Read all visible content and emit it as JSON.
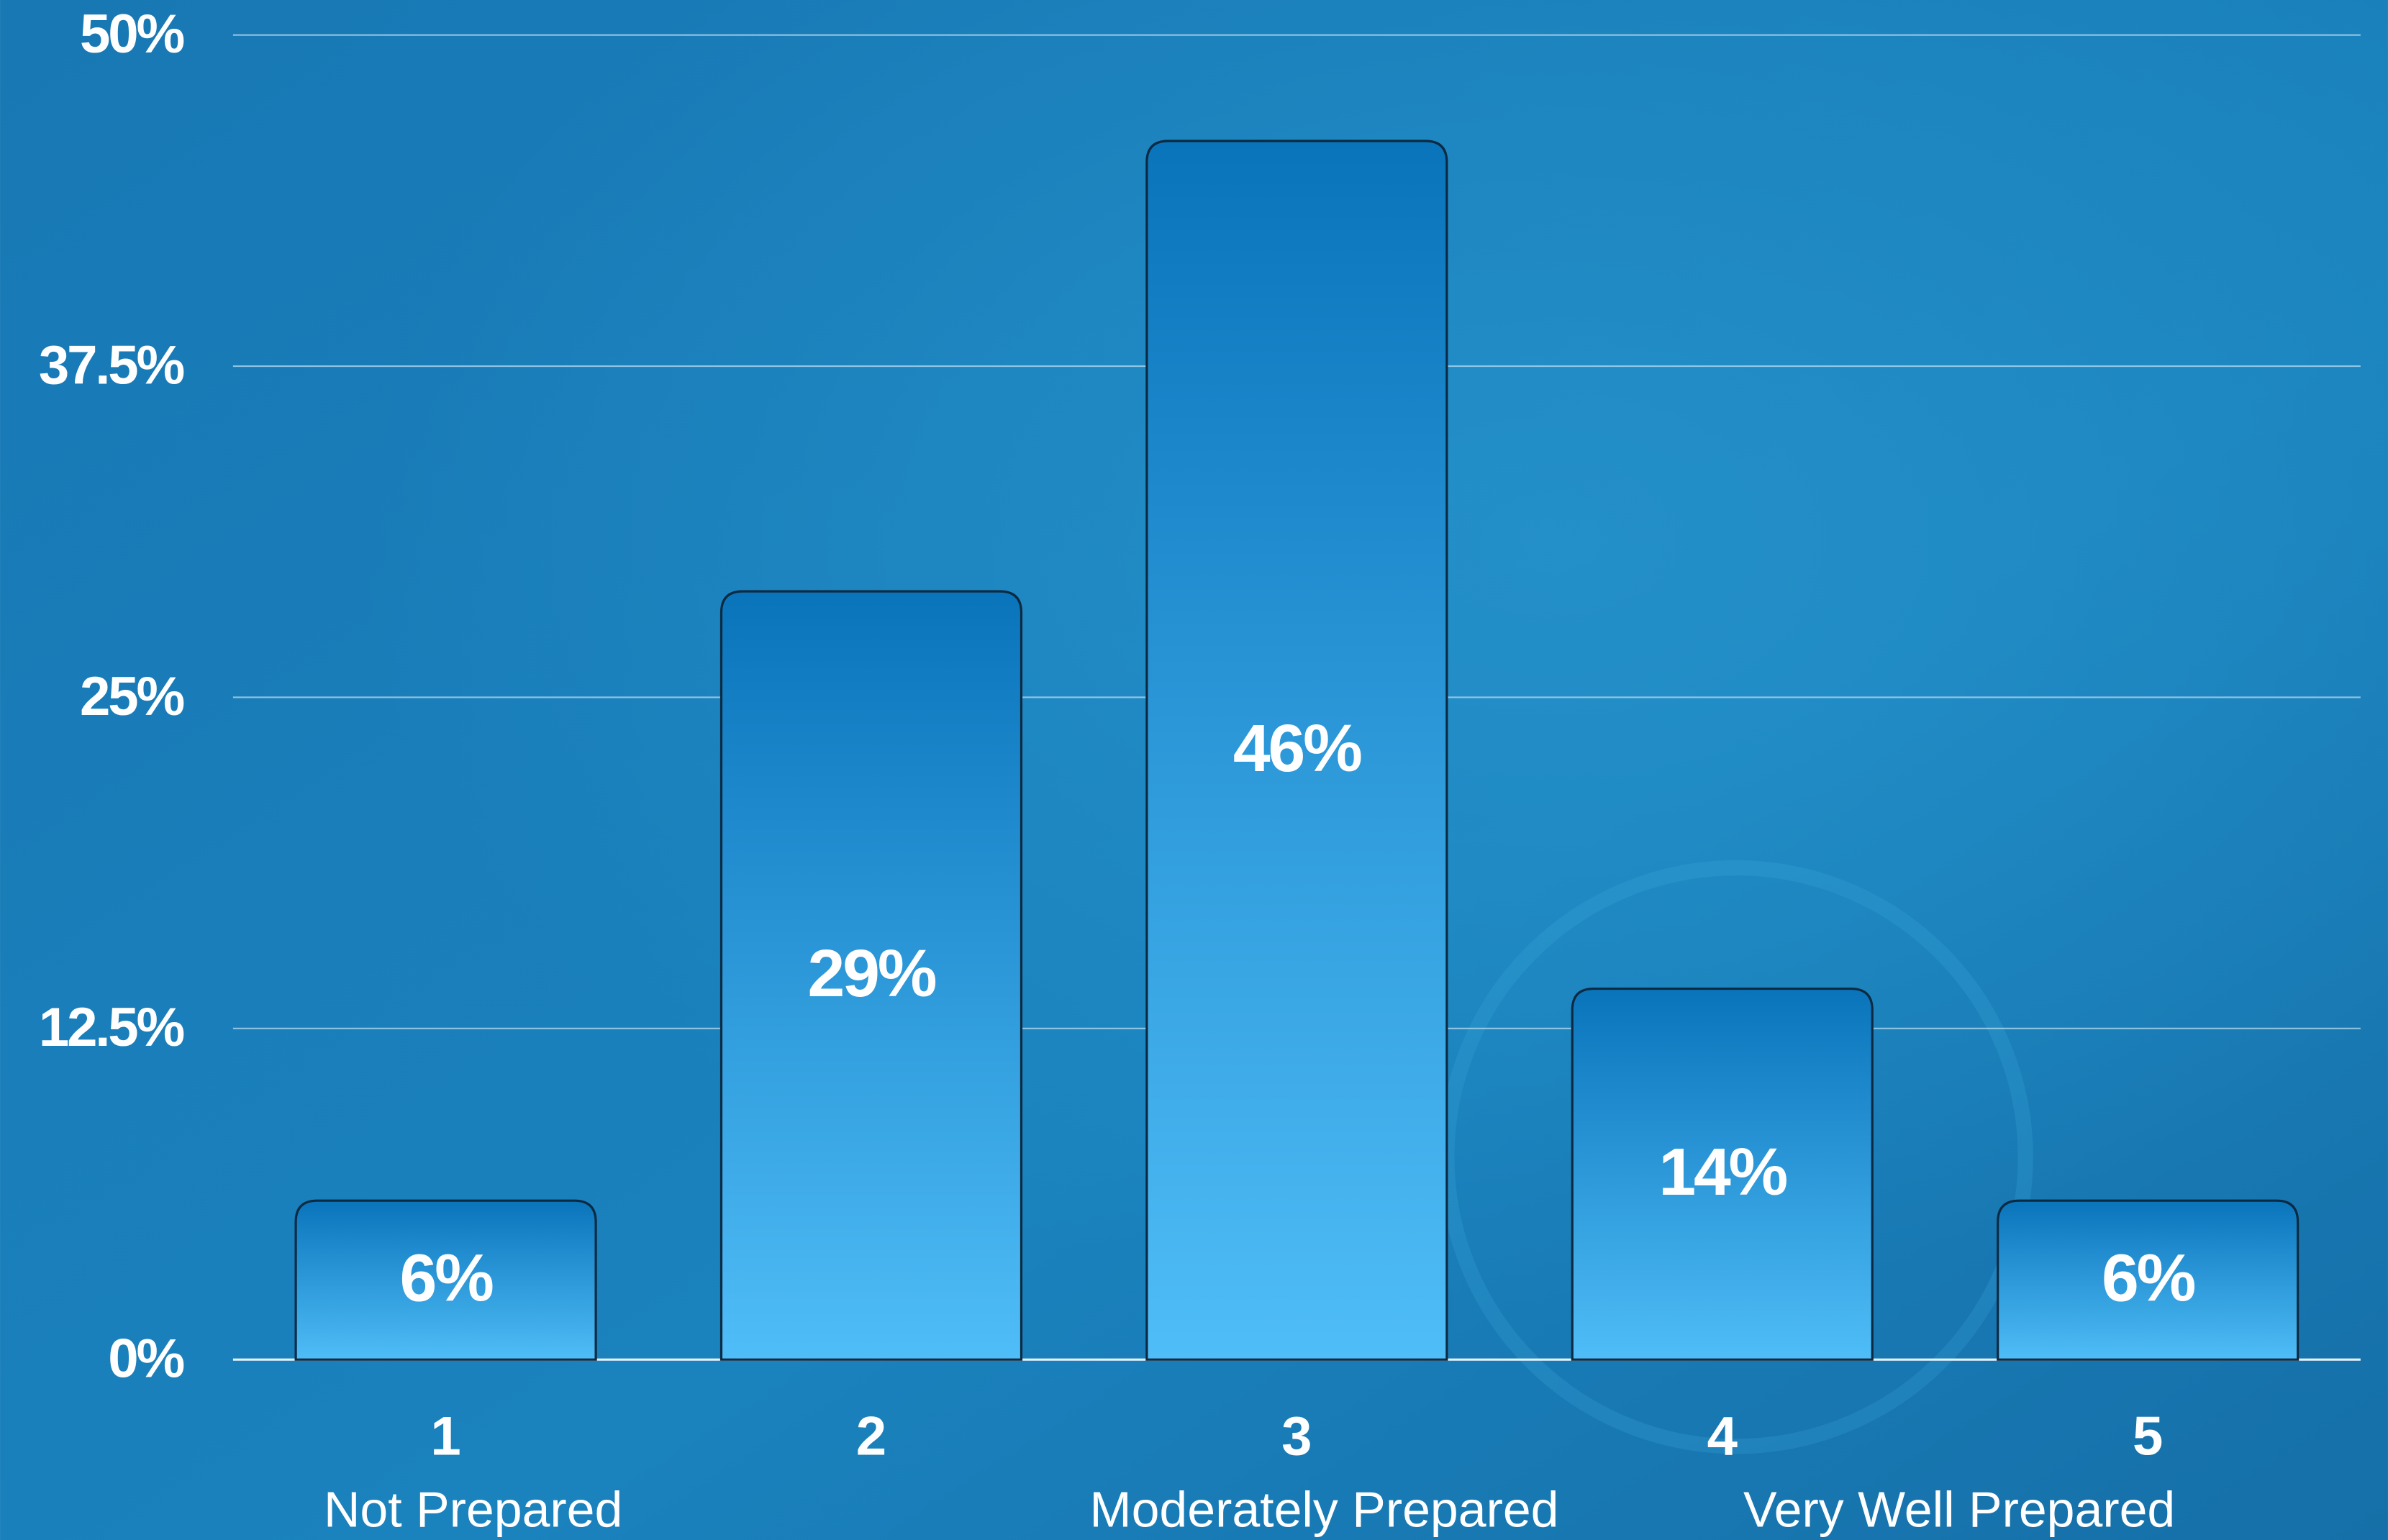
{
  "chart_data": {
    "type": "bar",
    "categories": [
      "1",
      "2",
      "3",
      "4",
      "5"
    ],
    "sublabels": [
      "Not Prepared",
      null,
      "Moderately Prepared",
      null,
      "Very Well Prepared"
    ],
    "values": [
      6,
      29,
      46,
      14,
      6
    ],
    "value_labels": [
      "6%",
      "29%",
      "46%",
      "14%",
      "6%"
    ],
    "ylim": [
      0,
      50
    ],
    "yticks": [
      {
        "value": 0,
        "label": "0%"
      },
      {
        "value": 12.5,
        "label": "12.5%"
      },
      {
        "value": 25,
        "label": "25%"
      },
      {
        "value": 37.5,
        "label": "37.5%"
      },
      {
        "value": 50,
        "label": "50%"
      }
    ],
    "grid": true,
    "color": [
      "#0a74bb",
      "#4fbdf7"
    ]
  }
}
